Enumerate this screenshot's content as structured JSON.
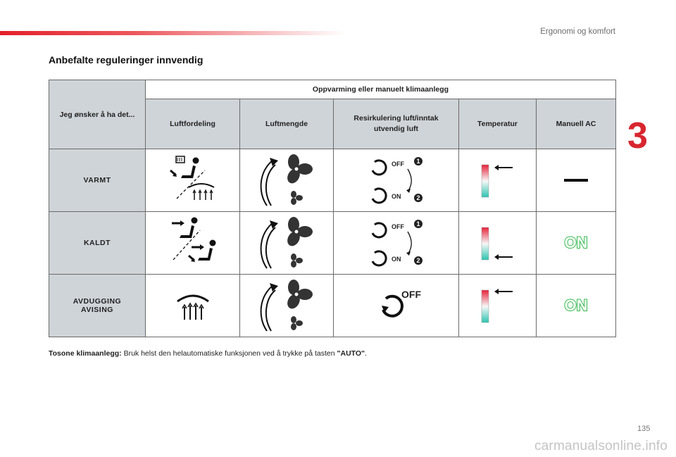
{
  "header": {
    "section": "Ergonomi og komfort"
  },
  "chapter_number": "3",
  "title": "Anbefalte reguleringer innvendig",
  "table": {
    "corner": "Jeg ønsker å ha det...",
    "group_header": "Oppvarming eller manuelt klimaanlegg",
    "columns": [
      "Luftfordeling",
      "Luftmengde",
      "Resirkulering luft/inntak utvendig luft",
      "Temperatur",
      "Manuell AC"
    ],
    "rows": [
      {
        "label": "VARMT",
        "recirc_top": "OFF",
        "recirc_bottom": "ON",
        "step1": "1",
        "step2": "2",
        "ac_state": "off"
      },
      {
        "label": "KALDT",
        "recirc_top": "OFF",
        "recirc_bottom": "ON",
        "step1": "1",
        "step2": "2",
        "ac": "ON"
      },
      {
        "label_line1": "AVDUGGING",
        "label_line2": "AVISING",
        "recirc": "OFF",
        "ac": "ON"
      }
    ]
  },
  "note": {
    "bold": "Tosone klimaanlegg:",
    "text": " Bruk helst den helautomatiske funksjonen ved å trykke på tasten ",
    "key": "\"AUTO\"",
    "end": "."
  },
  "page_number": "135",
  "watermark": "carmanualsonline.info",
  "colors": {
    "accent_red": "#d8262f",
    "ac_green": "#2fb84a",
    "table_grey": "#cfd4d8"
  }
}
